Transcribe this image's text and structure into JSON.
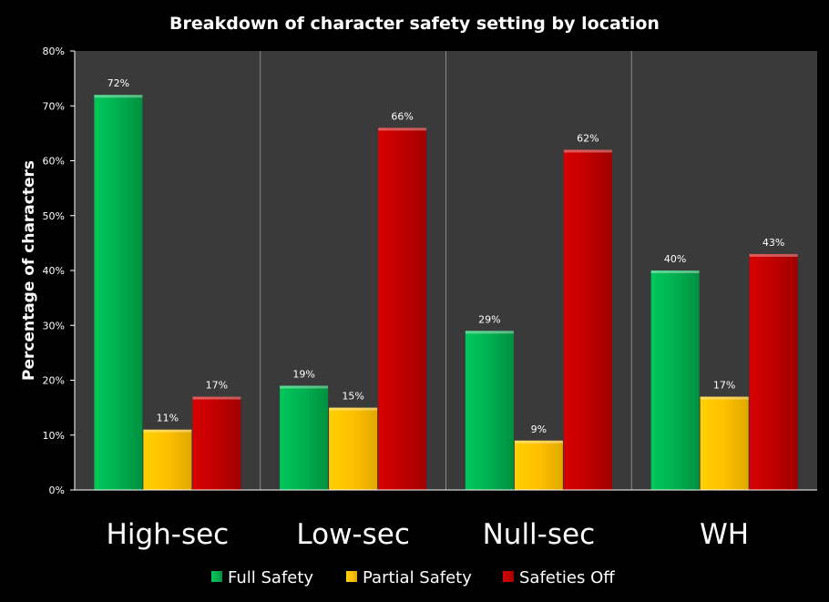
{
  "chart_data": {
    "type": "bar",
    "title": "Breakdown of character safety setting by location",
    "ylabel": "Percentage of characters",
    "xlabel": "",
    "ylim": [
      0,
      80
    ],
    "y_ticks": [
      "0%",
      "10%",
      "20%",
      "30%",
      "40%",
      "50%",
      "60%",
      "70%",
      "80%"
    ],
    "categories": [
      "High-sec",
      "Low-sec",
      "Null-sec",
      "WH"
    ],
    "series": [
      {
        "name": "Full Safety",
        "color": "#00b050",
        "values": [
          72,
          19,
          29,
          40
        ],
        "labels": [
          "72%",
          "19%",
          "29%",
          "40%"
        ]
      },
      {
        "name": "Partial Safety",
        "color": "#ffc000",
        "values": [
          11,
          15,
          9,
          17
        ],
        "labels": [
          "11%",
          "15%",
          "9%",
          "17%"
        ]
      },
      {
        "name": "Safeties Off",
        "color": "#c00000",
        "values": [
          17,
          66,
          62,
          43
        ],
        "labels": [
          "17%",
          "66%",
          "62%",
          "43%"
        ]
      }
    ],
    "legend_position": "bottom",
    "grid": false,
    "category_separators": true,
    "plot_background": "#3a3a3a"
  }
}
